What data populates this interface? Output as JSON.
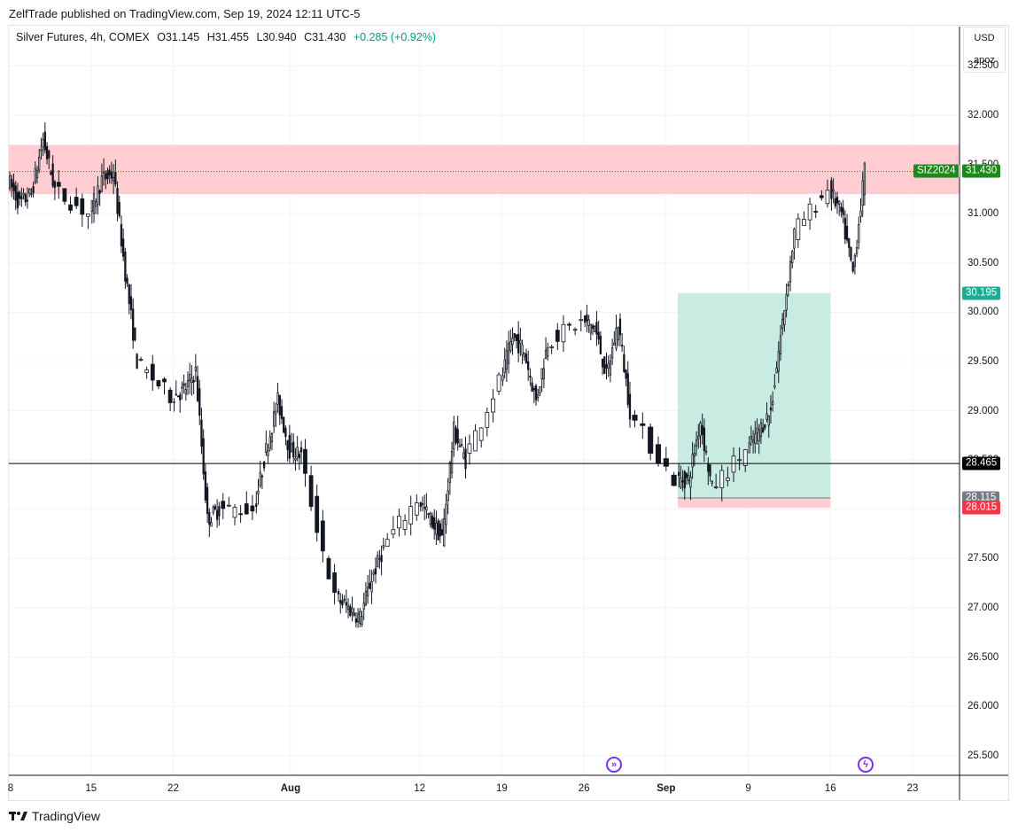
{
  "header": {
    "published_by": "ZelfTrade published on TradingView.com, Sep 19, 2024 12:11 UTC-5"
  },
  "legend": {
    "symbol": "Silver Futures, 4h, COMEX",
    "open": "O31.145",
    "high": "H31.455",
    "low": "L30.940",
    "close": "C31.430",
    "change": "+0.285 (+0.92%)",
    "change_color": "#089981"
  },
  "scale_controls": {
    "currency": "USD",
    "mode": "apoz"
  },
  "price_axis": {
    "ticks": [
      "32.500",
      "32.000",
      "31.500",
      "31.000",
      "30.500",
      "30.000",
      "29.500",
      "29.000",
      "28.500",
      "28.000",
      "27.500",
      "27.000",
      "26.500",
      "26.000",
      "25.500"
    ]
  },
  "date_axis": {
    "ticks": [
      "8",
      "15",
      "22",
      "Aug",
      "12",
      "19",
      "26",
      "Sep",
      "9",
      "16",
      "23"
    ]
  },
  "tags": {
    "symbol_tag": "SIZ2024",
    "last_price": "31.430",
    "target_price": "30.195",
    "horizontal_line_price": "28.465",
    "entry_price": "28.115",
    "stop_price": "28.015"
  },
  "colors": {
    "resistance_zone": "#ffcdd2",
    "profit_zone": "#c8ebe2",
    "loss_zone": "#ffcdd2",
    "last_price_tag": "#1b8a1b",
    "target_tag": "#22ab94",
    "entry_tag": "#787b86",
    "stop_tag": "#f23645",
    "line_tag": "#000000",
    "event_icon": "#7b2ff7"
  },
  "icons": {
    "event_icons": [
      "fast-forward-icon",
      "lightning-icon"
    ],
    "brand": "tradingview-logo-icon"
  },
  "footer": {
    "brand": "TradingView"
  },
  "chart_data": {
    "type": "candlestick",
    "title": "Silver Futures, 4h, COMEX",
    "ylim": [
      25.3,
      32.9
    ],
    "x_range": [
      "2024-07-08",
      "2024-09-27"
    ],
    "grid": true,
    "annotations": {
      "resistance_zone": [
        31.2,
        31.7
      ],
      "long_position": {
        "entry": 28.115,
        "target": 30.195,
        "stop": 28.015,
        "start": "2024-09-03",
        "end": "2024-09-16"
      },
      "horizontal_line": 28.465,
      "last_close": 31.43
    },
    "daily_path": [
      [
        "2024-07-08",
        31.35
      ],
      [
        "2024-07-09",
        31.1
      ],
      [
        "2024-07-10",
        31.2
      ],
      [
        "2024-07-11",
        31.75
      ],
      [
        "2024-07-12",
        31.25
      ],
      [
        "2024-07-15",
        31.0
      ],
      [
        "2024-07-16",
        31.35
      ],
      [
        "2024-07-17",
        31.4
      ],
      [
        "2024-07-18",
        30.4
      ],
      [
        "2024-07-19",
        29.5
      ],
      [
        "2024-07-22",
        29.15
      ],
      [
        "2024-07-23",
        29.2
      ],
      [
        "2024-07-24",
        29.4
      ],
      [
        "2024-07-25",
        27.9
      ],
      [
        "2024-07-26",
        28.0
      ],
      [
        "2024-07-29",
        28.0
      ],
      [
        "2024-07-30",
        28.6
      ],
      [
        "2024-07-31",
        29.1
      ],
      [
        "2024-08-01",
        28.6
      ],
      [
        "2024-08-02",
        28.55
      ],
      [
        "2024-08-05",
        27.1
      ],
      [
        "2024-08-06",
        27.0
      ],
      [
        "2024-08-07",
        26.9
      ],
      [
        "2024-08-08",
        27.3
      ],
      [
        "2024-08-09",
        27.6
      ],
      [
        "2024-08-12",
        28.1
      ],
      [
        "2024-08-13",
        27.9
      ],
      [
        "2024-08-14",
        27.7
      ],
      [
        "2024-08-15",
        28.8
      ],
      [
        "2024-08-16",
        28.5
      ],
      [
        "2024-08-19",
        29.3
      ],
      [
        "2024-08-20",
        29.75
      ],
      [
        "2024-08-21",
        29.6
      ],
      [
        "2024-08-22",
        29.1
      ],
      [
        "2024-08-23",
        29.7
      ],
      [
        "2024-08-26",
        29.9
      ],
      [
        "2024-08-27",
        29.85
      ],
      [
        "2024-08-28",
        29.35
      ],
      [
        "2024-08-29",
        29.9
      ],
      [
        "2024-08-30",
        29.0
      ],
      [
        "2024-09-03",
        28.3
      ],
      [
        "2024-09-04",
        28.3
      ],
      [
        "2024-09-05",
        28.9
      ],
      [
        "2024-09-06",
        28.2
      ],
      [
        "2024-09-09",
        28.6
      ],
      [
        "2024-09-10",
        28.8
      ],
      [
        "2024-09-11",
        29.0
      ],
      [
        "2024-09-12",
        29.9
      ],
      [
        "2024-09-13",
        30.8
      ],
      [
        "2024-09-16",
        31.25
      ],
      [
        "2024-09-17",
        31.0
      ],
      [
        "2024-09-18",
        30.4
      ],
      [
        "2024-09-19",
        31.43
      ]
    ]
  }
}
